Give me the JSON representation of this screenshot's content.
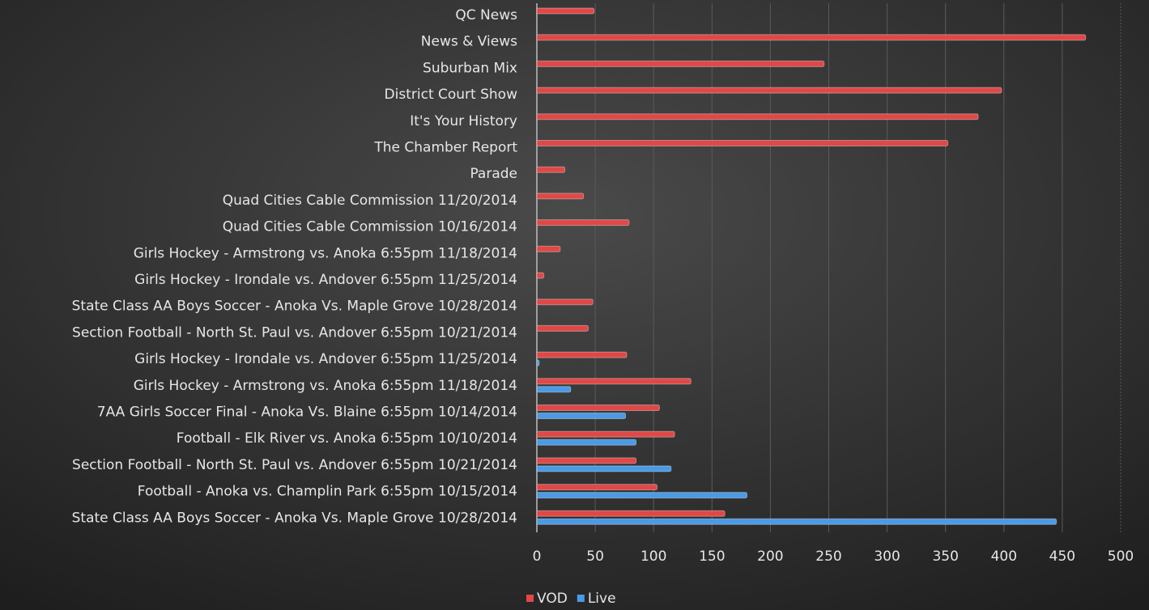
{
  "chart_data": {
    "type": "hbar",
    "categories": [
      "QC News",
      "News & Views",
      "Suburban Mix",
      "District Court Show",
      "It's Your History",
      "The Chamber Report",
      "Parade",
      "Quad Cities Cable Commission 11/20/2014",
      "Quad Cities Cable Commission 10/16/2014",
      "Girls Hockey - Armstrong vs. Anoka 6:55pm 11/18/2014",
      "Girls Hockey - Irondale vs. Andover 6:55pm 11/25/2014",
      "State Class AA Boys Soccer - Anoka Vs. Maple Grove 10/28/2014",
      "Section Football - North St. Paul vs. Andover 6:55pm 10/21/2014",
      "Girls Hockey - Irondale vs. Andover 6:55pm 11/25/2014",
      "Girls Hockey - Armstrong vs. Anoka 6:55pm 11/18/2014",
      "7AA Girls Soccer Final - Anoka Vs. Blaine 6:55pm 10/14/2014",
      "Football - Elk River vs. Anoka 6:55pm 10/10/2014",
      "Section Football - North St. Paul vs. Andover 6:55pm 10/21/2014",
      "Football - Anoka vs. Champlin Park 6:55pm 10/15/2014",
      "State Class AA Boys Soccer - Anoka Vs. Maple Grove 10/28/2014"
    ],
    "series": [
      {
        "name": "VOD",
        "color": "#e04848",
        "values": [
          49,
          470,
          246,
          398,
          378,
          352,
          24,
          40,
          79,
          20,
          6,
          48,
          44,
          77,
          132,
          105,
          118,
          85,
          103,
          161
        ]
      },
      {
        "name": "Live",
        "color": "#4a9ae6",
        "values": [
          null,
          null,
          null,
          null,
          null,
          null,
          null,
          null,
          null,
          null,
          null,
          null,
          null,
          2,
          29,
          76,
          85,
          115,
          180,
          445
        ]
      }
    ],
    "xlim": [
      0,
      500
    ],
    "xticks": [
      0,
      50,
      100,
      150,
      200,
      250,
      300,
      350,
      400,
      450,
      500
    ],
    "grid": true
  }
}
